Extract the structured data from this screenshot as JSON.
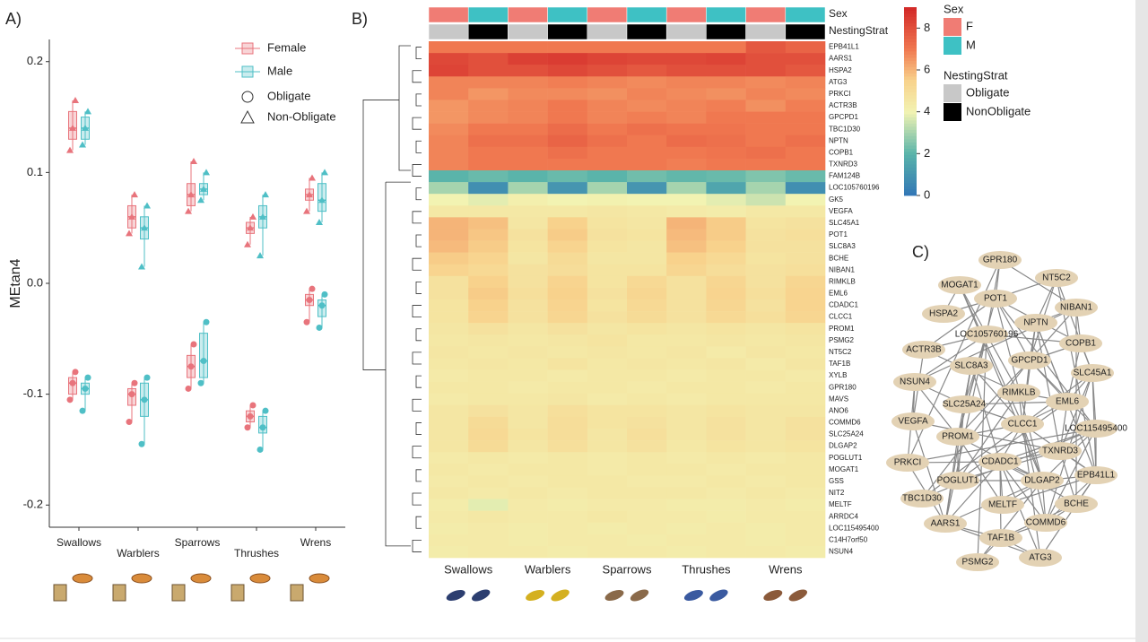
{
  "panel_labels": [
    "A)",
    "B)",
    "C)"
  ],
  "chart_data": [
    {
      "type": "box",
      "ylabel": "MEtan4",
      "categories": [
        "Swallows",
        "Warblers",
        "Sparrows",
        "Thrushes",
        "Wrens"
      ],
      "ylim": [
        -0.22,
        0.22
      ],
      "yticks": [
        -0.2,
        -0.1,
        {
          "value": 0,
          "label": "0.0"
        },
        0.1,
        0.2
      ],
      "shape_legend": [
        "Obligate",
        "Non-Obligate"
      ],
      "series": [
        {
          "name": "Female",
          "color": "#e8747c",
          "non_obligate": [
            [
              0.12,
              0.13,
              0.14,
              0.155,
              0.165
            ],
            [
              0.045,
              0.05,
              0.06,
              0.07,
              0.08
            ],
            [
              0.065,
              0.07,
              0.08,
              0.09,
              0.11
            ],
            [
              0.035,
              0.045,
              0.05,
              0.055,
              0.06
            ],
            [
              0.065,
              0.075,
              0.08,
              0.085,
              0.095
            ]
          ],
          "obligate": [
            [
              -0.105,
              -0.1,
              -0.09,
              -0.085,
              -0.08
            ],
            [
              -0.125,
              -0.11,
              -0.1,
              -0.095,
              -0.09
            ],
            [
              -0.095,
              -0.085,
              -0.075,
              -0.065,
              -0.055
            ],
            [
              -0.13,
              -0.125,
              -0.12,
              -0.115,
              -0.11
            ],
            [
              -0.035,
              -0.02,
              -0.015,
              -0.01,
              -0.005
            ]
          ]
        },
        {
          "name": "Male",
          "color": "#4fbfc6",
          "non_obligate": [
            [
              0.125,
              0.13,
              0.14,
              0.15,
              0.155
            ],
            [
              0.015,
              0.04,
              0.05,
              0.06,
              0.07
            ],
            [
              0.075,
              0.08,
              0.085,
              0.09,
              0.1
            ],
            [
              0.025,
              0.05,
              0.06,
              0.07,
              0.08
            ],
            [
              0.055,
              0.065,
              0.075,
              0.09,
              0.1
            ]
          ],
          "obligate": [
            [
              -0.115,
              -0.1,
              -0.095,
              -0.09,
              -0.085
            ],
            [
              -0.145,
              -0.12,
              -0.105,
              -0.09,
              -0.085
            ],
            [
              -0.09,
              -0.085,
              -0.07,
              -0.045,
              -0.035
            ],
            [
              -0.15,
              -0.135,
              -0.13,
              -0.12,
              -0.115
            ],
            [
              -0.04,
              -0.03,
              -0.02,
              -0.015,
              -0.01
            ]
          ]
        }
      ]
    },
    {
      "type": "heatmap",
      "groups": [
        "Swallows",
        "Warblers",
        "Sparrows",
        "Thrushes",
        "Wrens"
      ],
      "annotation_titles": [
        "Sex",
        "NestingStrat"
      ],
      "sex": [
        "F",
        "M",
        "F",
        "M",
        "F",
        "M",
        "F",
        "M",
        "F",
        "M"
      ],
      "nesting": [
        "Obligate",
        "NonObligate",
        "Obligate",
        "NonObligate",
        "Obligate",
        "NonObligate",
        "Obligate",
        "NonObligate",
        "Obligate",
        "NonObligate"
      ],
      "sex_legend": [
        {
          "name": "F",
          "color": "#f07c74"
        },
        {
          "name": "M",
          "color": "#3ec1c4"
        }
      ],
      "nesting_legend": [
        {
          "name": "Obligate",
          "color": "#c8c8c8"
        },
        {
          "name": "NonObligate",
          "color": "#000000"
        }
      ],
      "zlim": [
        0,
        9
      ],
      "zticks": [
        0,
        2,
        4,
        6,
        8
      ],
      "genes": [
        "EPB41L1",
        "AARS1",
        "HSPA2",
        "ATG3",
        "PRKCI",
        "ACTR3B",
        "GPCPD1",
        "TBC1D30",
        "NPTN",
        "COPB1",
        "TXNRD3",
        "FAM124B",
        "LOC105760196",
        "GK5",
        "VEGFA",
        "SLC45A1",
        "POT1",
        "SLC8A3",
        "BCHE",
        "NIBAN1",
        "RIMKLB",
        "EML6",
        "CDADC1",
        "CLCC1",
        "PROM1",
        "PSMG2",
        "NT5C2",
        "TAF1B",
        "XYLB",
        "GPR180",
        "MAVS",
        "ANO6",
        "COMMD6",
        "SLC25A24",
        "DLGAP2",
        "POGLUT1",
        "MOGAT1",
        "GSS",
        "NIT2",
        "MELTF",
        "ARRDC4",
        "LOC115495400",
        "C14H7orf50",
        "NSUN4"
      ],
      "values": [
        [
          7,
          7,
          7,
          7,
          7,
          7,
          7,
          7,
          7.8,
          7.5
        ],
        [
          8.2,
          8,
          8.4,
          8.5,
          8.3,
          8.2,
          8.2,
          8.3,
          8,
          8
        ],
        [
          8.3,
          8,
          8,
          8.2,
          8,
          7.8,
          8,
          8,
          8,
          7.8
        ],
        [
          6.8,
          6.8,
          6.8,
          6.9,
          6.8,
          6.7,
          6.8,
          6.8,
          6.7,
          6.8
        ],
        [
          6.8,
          6.5,
          6.7,
          6.7,
          6.6,
          6.8,
          6.7,
          6.6,
          6.8,
          6.7
        ],
        [
          6.5,
          6.7,
          6.8,
          7,
          6.8,
          6.7,
          6.8,
          6.9,
          6.6,
          6.9
        ],
        [
          6.5,
          6.7,
          6.8,
          7,
          6.8,
          6.9,
          6.8,
          7,
          7,
          7
        ],
        [
          6.7,
          7,
          7,
          7.3,
          7,
          7.2,
          7.1,
          7.1,
          7,
          7
        ],
        [
          6.8,
          7.2,
          7.2,
          7.5,
          7.2,
          7,
          7.3,
          7.2,
          7,
          7.2
        ],
        [
          6.8,
          7,
          7,
          7.2,
          7,
          7,
          7,
          7.1,
          7.2,
          7
        ],
        [
          6.8,
          7,
          7,
          7,
          7,
          7,
          6.9,
          7,
          7,
          7
        ],
        [
          2,
          2.2,
          2,
          2.2,
          2,
          2.3,
          2.1,
          2.2,
          2.5,
          2.2
        ],
        [
          3,
          0.8,
          3,
          1,
          3,
          1,
          3,
          1.5,
          3,
          0.8
        ],
        [
          4,
          3.8,
          4.2,
          4,
          4.1,
          4,
          4,
          3.8,
          3.5,
          4
        ],
        [
          4.5,
          4.5,
          4.5,
          4.5,
          4.6,
          4.5,
          4.4,
          4.3,
          4.5,
          4.5
        ],
        [
          6,
          5.8,
          4.6,
          5.5,
          4.7,
          4.6,
          6,
          5.6,
          4.7,
          4.8
        ],
        [
          6,
          5.7,
          4.8,
          5.6,
          4.8,
          4.7,
          5.9,
          5.6,
          4.8,
          4.9
        ],
        [
          5.9,
          5.6,
          4.7,
          5.4,
          4.7,
          4.6,
          5.8,
          5.5,
          4.8,
          4.8
        ],
        [
          5.6,
          5.4,
          4.6,
          5.1,
          4.6,
          4.6,
          5.5,
          5.2,
          4.7,
          4.8
        ],
        [
          5.4,
          5.2,
          4.8,
          5,
          4.7,
          4.7,
          5.3,
          5,
          4.8,
          4.9
        ],
        [
          4.8,
          5.5,
          4.8,
          5.4,
          4.7,
          5.2,
          4.8,
          5.3,
          4.8,
          5.3
        ],
        [
          4.8,
          5.6,
          4.9,
          5.5,
          4.8,
          5.3,
          4.8,
          5.4,
          4.9,
          5.4
        ],
        [
          4.7,
          5.5,
          4.8,
          5.4,
          4.7,
          5.2,
          4.8,
          5.3,
          4.8,
          5.4
        ],
        [
          4.7,
          5.4,
          4.8,
          5.3,
          4.8,
          5.1,
          4.8,
          5.2,
          4.9,
          5.3
        ],
        [
          4.6,
          4.8,
          4.6,
          4.8,
          4.6,
          4.7,
          4.6,
          4.7,
          4.6,
          4.7
        ],
        [
          4.5,
          4.6,
          4.5,
          4.6,
          4.7,
          4.5,
          4.5,
          4.6,
          4.5,
          4.6
        ],
        [
          4.6,
          4.5,
          4.6,
          4.5,
          4.6,
          4.5,
          4.6,
          4.4,
          4.6,
          4.5
        ],
        [
          4.5,
          4.6,
          4.5,
          4.7,
          4.5,
          4.6,
          4.5,
          4.6,
          4.4,
          4.6
        ],
        [
          4.4,
          4.5,
          4.5,
          4.4,
          4.5,
          4.5,
          4.4,
          4.5,
          4.5,
          4.4
        ],
        [
          4.5,
          4.5,
          4.4,
          4.5,
          4.5,
          4.4,
          4.5,
          4.5,
          4.4,
          4.5
        ],
        [
          4.4,
          4.5,
          4.5,
          4.6,
          4.4,
          4.5,
          4.4,
          4.5,
          4.5,
          4.5
        ],
        [
          4.6,
          4.8,
          4.6,
          4.9,
          4.7,
          4.7,
          4.6,
          4.7,
          4.6,
          4.6
        ],
        [
          4.6,
          5.1,
          4.6,
          5,
          4.7,
          4.8,
          4.6,
          4.8,
          4.6,
          4.8
        ],
        [
          4.6,
          5.2,
          4.7,
          5,
          4.6,
          4.9,
          4.6,
          4.8,
          4.6,
          4.8
        ],
        [
          4.6,
          5.1,
          4.6,
          4.9,
          4.6,
          4.8,
          4.5,
          4.7,
          4.6,
          4.7
        ],
        [
          4.4,
          4.5,
          4.4,
          4.5,
          4.4,
          4.5,
          4.4,
          4.5,
          4.4,
          4.5
        ],
        [
          4.5,
          4.4,
          4.5,
          4.5,
          4.4,
          4.5,
          4.5,
          4.4,
          4.5,
          4.5
        ],
        [
          4.4,
          4.5,
          4.4,
          4.5,
          4.5,
          4.4,
          4.4,
          4.5,
          4.4,
          4.5
        ],
        [
          4.5,
          4.4,
          4.5,
          4.4,
          4.5,
          4.5,
          4.5,
          4.4,
          4.5,
          4.4
        ],
        [
          4.3,
          3.8,
          4.4,
          4.3,
          4.4,
          4.4,
          4.3,
          4.3,
          4.4,
          4.3
        ],
        [
          4.4,
          4.5,
          4.4,
          4.4,
          4.5,
          4.4,
          4.4,
          4.3,
          4.4,
          4.4
        ],
        [
          4.3,
          4.4,
          4.3,
          4.4,
          4.3,
          4.4,
          4.3,
          4.4,
          4.3,
          4.4
        ],
        [
          4.4,
          4.4,
          4.3,
          4.4,
          4.4,
          4.3,
          4.4,
          4.4,
          4.3,
          4.4
        ],
        [
          4.3,
          4.4,
          4.4,
          4.3,
          4.4,
          4.4,
          4.3,
          4.4,
          4.4,
          4.3
        ]
      ]
    },
    {
      "type": "network",
      "nodes": [
        "GPR180",
        "NT5C2",
        "MOGAT1",
        "POT1",
        "NIBAN1",
        "HSPA2",
        "NPTN",
        "LOC105760196",
        "COPB1",
        "ACTR3B",
        "GPCPD1",
        "SLC8A3",
        "SLC45A1",
        "NSUN4",
        "RIMKLB",
        "EML6",
        "SLC25A24",
        "CLCC1",
        "LOC115495400",
        "VEGFA",
        "PROM1",
        "TXNRD3",
        "PRKCI",
        "CDADC1",
        "EPB41L1",
        "POGLUT1",
        "DLGAP2",
        "TBC1D30",
        "MELTF",
        "BCHE",
        "AARS1",
        "COMMD6",
        "TAF1B",
        "ATG3",
        "PSMG2"
      ]
    }
  ]
}
